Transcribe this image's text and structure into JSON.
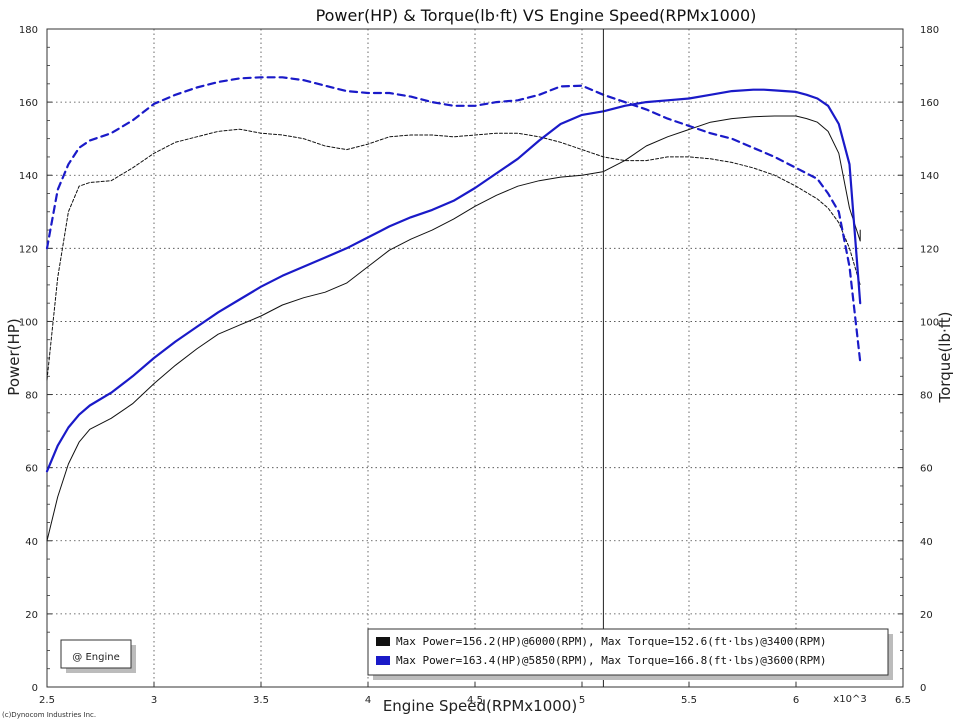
{
  "chart_data": {
    "type": "line",
    "title": "Power(HP) & Torque(lb·ft) VS Engine Speed(RPMx1000)",
    "xlabel": "Engine Speed(RPMx1000)",
    "ylabel_left": "Power(HP)",
    "ylabel_right": "Torque(lb·ft)",
    "x_multiplier_label": "x10^3",
    "xlim": [
      2.5,
      6.5
    ],
    "ylim": [
      0,
      180
    ],
    "x_ticks": [
      "2.5",
      "3",
      "3.5",
      "4",
      "4.5",
      "5",
      "5.5",
      "6",
      "6.5"
    ],
    "y_ticks": [
      "0",
      "20",
      "40",
      "60",
      "80",
      "100",
      "120",
      "140",
      "160",
      "180"
    ],
    "grid": true,
    "cursor_x": 5.1,
    "series": [
      {
        "color": "#111111",
        "quantity": "power",
        "dash": "solid",
        "points": [
          [
            2.5,
            40
          ],
          [
            2.55,
            52
          ],
          [
            2.6,
            61
          ],
          [
            2.65,
            67
          ],
          [
            2.7,
            70.5
          ],
          [
            2.8,
            73.5
          ],
          [
            2.9,
            77.5
          ],
          [
            3.0,
            83
          ],
          [
            3.1,
            88
          ],
          [
            3.2,
            92.5
          ],
          [
            3.3,
            96.5
          ],
          [
            3.4,
            99
          ],
          [
            3.5,
            101.5
          ],
          [
            3.6,
            104.5
          ],
          [
            3.7,
            106.5
          ],
          [
            3.8,
            108
          ],
          [
            3.9,
            110.5
          ],
          [
            4.0,
            115
          ],
          [
            4.1,
            119.5
          ],
          [
            4.2,
            122.5
          ],
          [
            4.3,
            125
          ],
          [
            4.4,
            128
          ],
          [
            4.5,
            131.5
          ],
          [
            4.6,
            134.5
          ],
          [
            4.7,
            137
          ],
          [
            4.8,
            138.5
          ],
          [
            4.9,
            139.5
          ],
          [
            5.0,
            140
          ],
          [
            5.1,
            141
          ],
          [
            5.2,
            144
          ],
          [
            5.3,
            148
          ],
          [
            5.4,
            150.5
          ],
          [
            5.5,
            152.5
          ],
          [
            5.6,
            154.5
          ],
          [
            5.7,
            155.5
          ],
          [
            5.8,
            156
          ],
          [
            5.9,
            156.2
          ],
          [
            6.0,
            156.2
          ],
          [
            6.05,
            155.5
          ],
          [
            6.1,
            154.5
          ],
          [
            6.15,
            152
          ],
          [
            6.2,
            146
          ],
          [
            6.25,
            131
          ],
          [
            6.3,
            122
          ],
          [
            6.3,
            125
          ]
        ]
      },
      {
        "color": "#111111",
        "quantity": "torque",
        "dash": "dashed",
        "points": [
          [
            2.5,
            84
          ],
          [
            2.55,
            112
          ],
          [
            2.6,
            130
          ],
          [
            2.65,
            137
          ],
          [
            2.7,
            138
          ],
          [
            2.8,
            138.5
          ],
          [
            2.9,
            142
          ],
          [
            3.0,
            146
          ],
          [
            3.1,
            149
          ],
          [
            3.2,
            150.5
          ],
          [
            3.3,
            152
          ],
          [
            3.4,
            152.6
          ],
          [
            3.5,
            151.5
          ],
          [
            3.6,
            151
          ],
          [
            3.7,
            150
          ],
          [
            3.8,
            148
          ],
          [
            3.9,
            147
          ],
          [
            4.0,
            148.5
          ],
          [
            4.1,
            150.5
          ],
          [
            4.2,
            151
          ],
          [
            4.3,
            151
          ],
          [
            4.4,
            150.5
          ],
          [
            4.5,
            151
          ],
          [
            4.6,
            151.5
          ],
          [
            4.7,
            151.5
          ],
          [
            4.8,
            150.5
          ],
          [
            4.9,
            149
          ],
          [
            5.0,
            147
          ],
          [
            5.1,
            145
          ],
          [
            5.2,
            144
          ],
          [
            5.3,
            144
          ],
          [
            5.4,
            145
          ],
          [
            5.5,
            145
          ],
          [
            5.6,
            144.5
          ],
          [
            5.7,
            143.5
          ],
          [
            5.8,
            142
          ],
          [
            5.9,
            140
          ],
          [
            6.0,
            137
          ],
          [
            6.1,
            133.5
          ],
          [
            6.15,
            131
          ],
          [
            6.2,
            127
          ],
          [
            6.25,
            120
          ],
          [
            6.3,
            110
          ]
        ]
      },
      {
        "color": "#1a1ac8",
        "quantity": "power",
        "dash": "solid",
        "points": [
          [
            2.5,
            59
          ],
          [
            2.55,
            66
          ],
          [
            2.6,
            71
          ],
          [
            2.65,
            74.5
          ],
          [
            2.7,
            77
          ],
          [
            2.8,
            80.5
          ],
          [
            2.9,
            85
          ],
          [
            3.0,
            90
          ],
          [
            3.1,
            94.5
          ],
          [
            3.2,
            98.5
          ],
          [
            3.3,
            102.5
          ],
          [
            3.4,
            106
          ],
          [
            3.5,
            109.5
          ],
          [
            3.6,
            112.5
          ],
          [
            3.7,
            115
          ],
          [
            3.8,
            117.5
          ],
          [
            3.9,
            120
          ],
          [
            4.0,
            123
          ],
          [
            4.1,
            126
          ],
          [
            4.2,
            128.5
          ],
          [
            4.3,
            130.5
          ],
          [
            4.4,
            133
          ],
          [
            4.5,
            136.5
          ],
          [
            4.6,
            140.5
          ],
          [
            4.7,
            144.5
          ],
          [
            4.8,
            149.5
          ],
          [
            4.9,
            154
          ],
          [
            5.0,
            156.5
          ],
          [
            5.1,
            157.5
          ],
          [
            5.2,
            159
          ],
          [
            5.3,
            160
          ],
          [
            5.4,
            160.5
          ],
          [
            5.5,
            161
          ],
          [
            5.6,
            162
          ],
          [
            5.7,
            163
          ],
          [
            5.8,
            163.4
          ],
          [
            5.85,
            163.4
          ],
          [
            5.9,
            163.2
          ],
          [
            6.0,
            162.8
          ],
          [
            6.05,
            162
          ],
          [
            6.1,
            161
          ],
          [
            6.15,
            159
          ],
          [
            6.2,
            154
          ],
          [
            6.25,
            143
          ],
          [
            6.3,
            105
          ]
        ]
      },
      {
        "color": "#1a1ac8",
        "quantity": "torque",
        "dash": "dashed",
        "points": [
          [
            2.5,
            120
          ],
          [
            2.55,
            136
          ],
          [
            2.6,
            143
          ],
          [
            2.65,
            147.5
          ],
          [
            2.7,
            149.5
          ],
          [
            2.8,
            151.5
          ],
          [
            2.9,
            155
          ],
          [
            3.0,
            159.5
          ],
          [
            3.1,
            162
          ],
          [
            3.2,
            164
          ],
          [
            3.3,
            165.5
          ],
          [
            3.4,
            166.5
          ],
          [
            3.5,
            166.8
          ],
          [
            3.6,
            166.8
          ],
          [
            3.7,
            166
          ],
          [
            3.8,
            164.5
          ],
          [
            3.9,
            163
          ],
          [
            4.0,
            162.5
          ],
          [
            4.1,
            162.5
          ],
          [
            4.2,
            161.5
          ],
          [
            4.3,
            160
          ],
          [
            4.4,
            159
          ],
          [
            4.5,
            159
          ],
          [
            4.6,
            160
          ],
          [
            4.7,
            160.5
          ],
          [
            4.8,
            162
          ],
          [
            4.9,
            164.3
          ],
          [
            5.0,
            164.5
          ],
          [
            5.1,
            162
          ],
          [
            5.2,
            160
          ],
          [
            5.3,
            158
          ],
          [
            5.4,
            155.5
          ],
          [
            5.5,
            153.5
          ],
          [
            5.6,
            151.5
          ],
          [
            5.7,
            150
          ],
          [
            5.8,
            147.5
          ],
          [
            5.9,
            145
          ],
          [
            6.0,
            142
          ],
          [
            6.1,
            139
          ],
          [
            6.15,
            135
          ],
          [
            6.2,
            130
          ],
          [
            6.25,
            115
          ],
          [
            6.3,
            89
          ]
        ]
      }
    ],
    "legend": [
      {
        "color": "#111111",
        "text": "Max Power=156.2(HP)@6000(RPM), Max Torque=152.6(ft·lbs)@3400(RPM)"
      },
      {
        "color": "#1a1ac8",
        "text": "Max Power=163.4(HP)@5850(RPM), Max Torque=166.8(ft·lbs)@3600(RPM)"
      }
    ],
    "legend_placement": "bottom-right",
    "annotation_box": "@ Engine",
    "credit": "(c)Dynocom Industries Inc."
  }
}
